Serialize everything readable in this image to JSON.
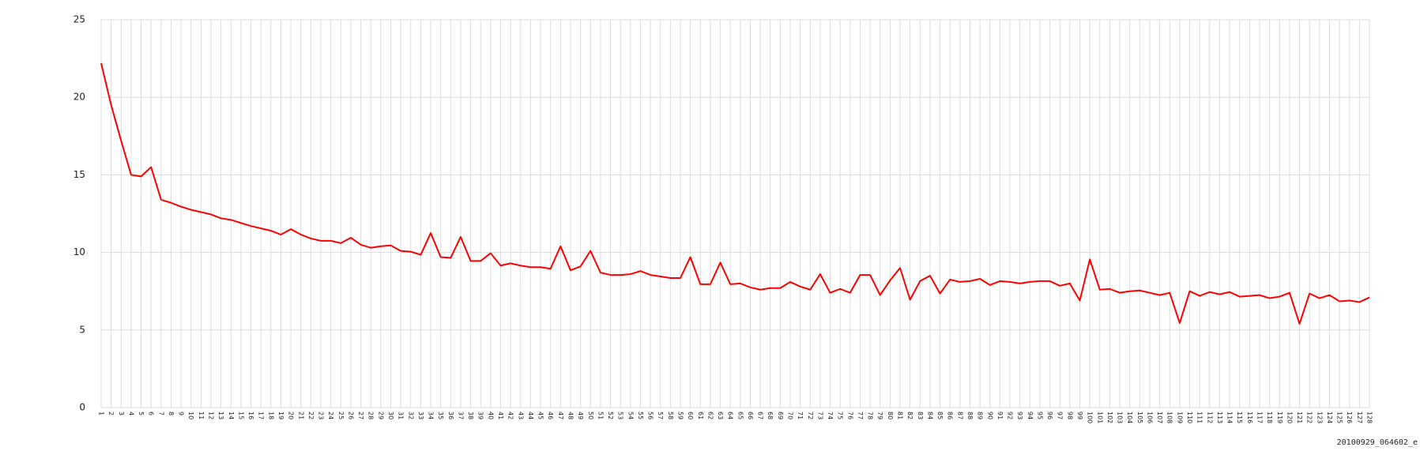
{
  "chart_data": {
    "type": "line",
    "categories": [
      "1",
      "2",
      "3",
      "4",
      "5",
      "6",
      "7",
      "8",
      "9",
      "10",
      "11",
      "12",
      "13",
      "14",
      "15",
      "16",
      "17",
      "18",
      "19",
      "20",
      "21",
      "22",
      "23",
      "24",
      "25",
      "26",
      "27",
      "28",
      "29",
      "30",
      "31",
      "32",
      "33",
      "34",
      "35",
      "36",
      "37",
      "38",
      "39",
      "40",
      "41",
      "42",
      "43",
      "44",
      "45",
      "46",
      "47",
      "48",
      "49",
      "50",
      "51",
      "52",
      "53",
      "54",
      "55",
      "56",
      "57",
      "58",
      "59",
      "60",
      "61",
      "62",
      "63",
      "64",
      "65",
      "66",
      "67",
      "68",
      "69",
      "70",
      "71",
      "72",
      "73",
      "74",
      "75",
      "76",
      "77",
      "78",
      "79",
      "80",
      "81",
      "82",
      "83",
      "84",
      "85",
      "86",
      "87",
      "88",
      "89",
      "90",
      "91",
      "92",
      "93",
      "94",
      "95",
      "96",
      "97",
      "98",
      "99",
      "100",
      "101",
      "102",
      "103",
      "104",
      "105",
      "106",
      "107",
      "108",
      "109",
      "110",
      "111",
      "112",
      "113",
      "114",
      "115",
      "116",
      "117",
      "118",
      "119",
      "120",
      "121",
      "122",
      "123",
      "124",
      "125",
      "126",
      "127",
      "128"
    ],
    "values": [
      22.2,
      19.5,
      17.2,
      15.0,
      14.9,
      15.5,
      13.4,
      13.2,
      12.95,
      12.75,
      12.6,
      12.45,
      12.2,
      12.1,
      11.9,
      11.7,
      11.55,
      11.4,
      11.15,
      11.5,
      11.15,
      10.9,
      10.75,
      10.75,
      10.6,
      10.95,
      10.5,
      10.3,
      10.4,
      10.45,
      10.1,
      10.05,
      9.85,
      11.25,
      9.7,
      9.65,
      11.0,
      9.45,
      9.45,
      9.95,
      9.15,
      9.3,
      9.15,
      9.05,
      9.05,
      8.95,
      10.4,
      8.85,
      9.1,
      10.1,
      8.7,
      8.55,
      8.55,
      8.6,
      8.8,
      8.55,
      8.45,
      8.35,
      8.35,
      9.7,
      7.95,
      7.95,
      9.35,
      7.95,
      8.0,
      7.75,
      7.6,
      7.7,
      7.7,
      8.1,
      7.8,
      7.6,
      8.6,
      7.4,
      7.65,
      7.4,
      8.55,
      8.55,
      7.25,
      8.2,
      9.0,
      6.95,
      8.15,
      8.5,
      7.35,
      8.25,
      8.1,
      8.15,
      8.3,
      7.9,
      8.15,
      8.1,
      8.0,
      8.1,
      8.15,
      8.15,
      7.85,
      8.0,
      6.9,
      9.55,
      7.6,
      7.65,
      7.4,
      7.5,
      7.55,
      7.4,
      7.25,
      7.4,
      5.45,
      7.5,
      7.2,
      7.45,
      7.3,
      7.45,
      7.15,
      7.2,
      7.25,
      7.05,
      7.15,
      7.4,
      5.4,
      7.35,
      7.05,
      7.25,
      6.85,
      6.9,
      6.8,
      7.1
    ],
    "color": "#ff0000",
    "ylim": [
      0,
      25
    ],
    "yticks": [
      0,
      5,
      10,
      15,
      20,
      25
    ],
    "grid": true,
    "caption": "20100929_064602_e"
  }
}
